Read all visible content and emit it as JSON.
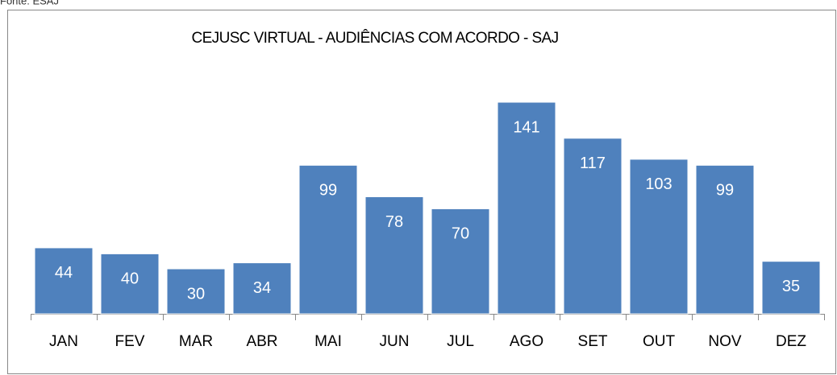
{
  "source": "Fonte: ESAJ",
  "chart_data": {
    "type": "bar",
    "title": "CEJUSC VIRTUAL -  AUDIÊNCIAS COM ACORDO - SAJ",
    "categories": [
      "JAN",
      "FEV",
      "MAR",
      "ABR",
      "MAI",
      "JUN",
      "JUL",
      "AGO",
      "SET",
      "OUT",
      "NOV",
      "DEZ"
    ],
    "values": [
      44,
      40,
      30,
      34,
      99,
      78,
      70,
      141,
      117,
      103,
      99,
      35
    ],
    "color": "#4f81bd"
  }
}
